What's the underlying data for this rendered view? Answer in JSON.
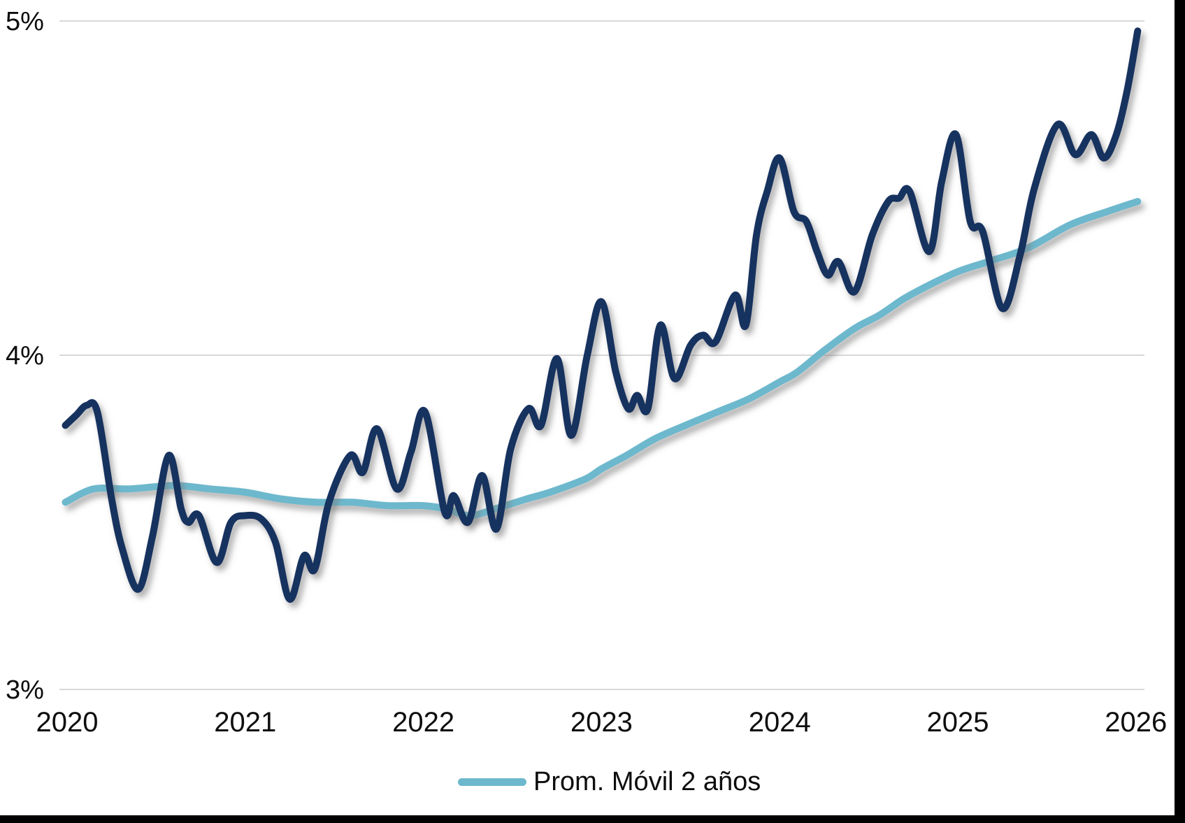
{
  "colors": {
    "background": "#ffffff",
    "grid": "#d8d8d8",
    "text": "#0d0d0d",
    "border": "#000000",
    "main_line": "#15315f",
    "moving_avg_line": "#6db8cd"
  },
  "chart_data": {
    "type": "line",
    "title": "",
    "xlabel": "",
    "ylabel": "",
    "xlim": [
      2019.97,
      2026.03
    ],
    "ylim": [
      3,
      5
    ],
    "grid": "horizontal",
    "legend_position": "bottom-center",
    "legend_label": "Prom. Móvil 2 años",
    "y_ticks": [
      {
        "label": "5%",
        "value": 5
      },
      {
        "label": "4%",
        "value": 4
      },
      {
        "label": "3%",
        "value": 3
      }
    ],
    "x_ticks": [
      {
        "label": "2020",
        "value": 2020
      },
      {
        "label": "2021",
        "value": 2021
      },
      {
        "label": "2022",
        "value": 2022
      },
      {
        "label": "2023",
        "value": 2023
      },
      {
        "label": "2024",
        "value": 2024
      },
      {
        "label": "2025",
        "value": 2025
      },
      {
        "label": "2026",
        "value": 2026
      }
    ],
    "series": [
      {
        "id": "serie-principal",
        "legend": null,
        "color": "#15315f",
        "points": [
          [
            2019.99,
            3.79
          ],
          [
            2020.05,
            3.82
          ],
          [
            2020.11,
            3.85
          ],
          [
            2020.17,
            3.83
          ],
          [
            2020.25,
            3.57
          ],
          [
            2020.31,
            3.42
          ],
          [
            2020.4,
            3.3
          ],
          [
            2020.48,
            3.46
          ],
          [
            2020.57,
            3.7
          ],
          [
            2020.64,
            3.54
          ],
          [
            2020.68,
            3.5
          ],
          [
            2020.74,
            3.52
          ],
          [
            2020.84,
            3.38
          ],
          [
            2020.92,
            3.5
          ],
          [
            2021.0,
            3.52
          ],
          [
            2021.09,
            3.51
          ],
          [
            2021.17,
            3.44
          ],
          [
            2021.25,
            3.27
          ],
          [
            2021.33,
            3.4
          ],
          [
            2021.39,
            3.36
          ],
          [
            2021.47,
            3.56
          ],
          [
            2021.59,
            3.7
          ],
          [
            2021.66,
            3.65
          ],
          [
            2021.74,
            3.78
          ],
          [
            2021.85,
            3.6
          ],
          [
            2021.93,
            3.71
          ],
          [
            2022.01,
            3.83
          ],
          [
            2022.12,
            3.53
          ],
          [
            2022.17,
            3.58
          ],
          [
            2022.25,
            3.5
          ],
          [
            2022.33,
            3.64
          ],
          [
            2022.41,
            3.48
          ],
          [
            2022.49,
            3.72
          ],
          [
            2022.59,
            3.84
          ],
          [
            2022.66,
            3.79
          ],
          [
            2022.75,
            3.99
          ],
          [
            2022.83,
            3.76
          ],
          [
            2022.92,
            4.0
          ],
          [
            2023.0,
            4.16
          ],
          [
            2023.08,
            3.95
          ],
          [
            2023.15,
            3.84
          ],
          [
            2023.2,
            3.88
          ],
          [
            2023.26,
            3.84
          ],
          [
            2023.33,
            4.09
          ],
          [
            2023.41,
            3.93
          ],
          [
            2023.5,
            4.03
          ],
          [
            2023.57,
            4.06
          ],
          [
            2023.64,
            4.04
          ],
          [
            2023.75,
            4.18
          ],
          [
            2023.81,
            4.09
          ],
          [
            2023.87,
            4.36
          ],
          [
            2023.93,
            4.49
          ],
          [
            2024.0,
            4.59
          ],
          [
            2024.08,
            4.43
          ],
          [
            2024.15,
            4.4
          ],
          [
            2024.21,
            4.31
          ],
          [
            2024.27,
            4.24
          ],
          [
            2024.33,
            4.28
          ],
          [
            2024.42,
            4.19
          ],
          [
            2024.52,
            4.36
          ],
          [
            2024.61,
            4.46
          ],
          [
            2024.67,
            4.47
          ],
          [
            2024.73,
            4.49
          ],
          [
            2024.84,
            4.31
          ],
          [
            2024.91,
            4.52
          ],
          [
            2024.99,
            4.66
          ],
          [
            2025.07,
            4.4
          ],
          [
            2025.14,
            4.37
          ],
          [
            2025.25,
            4.14
          ],
          [
            2025.35,
            4.3
          ],
          [
            2025.43,
            4.5
          ],
          [
            2025.56,
            4.69
          ],
          [
            2025.66,
            4.6
          ],
          [
            2025.75,
            4.66
          ],
          [
            2025.82,
            4.59
          ],
          [
            2025.89,
            4.66
          ],
          [
            2025.95,
            4.79
          ],
          [
            2026.01,
            4.97
          ]
        ]
      },
      {
        "id": "prom-movil-2-anos",
        "legend": "Prom. Móvil 2 años",
        "color": "#6db8cd",
        "points": [
          [
            2019.99,
            3.56
          ],
          [
            2020.15,
            3.6
          ],
          [
            2020.35,
            3.6
          ],
          [
            2020.6,
            3.61
          ],
          [
            2020.8,
            3.6
          ],
          [
            2021.0,
            3.59
          ],
          [
            2021.2,
            3.57
          ],
          [
            2021.4,
            3.56
          ],
          [
            2021.6,
            3.56
          ],
          [
            2021.8,
            3.55
          ],
          [
            2022.0,
            3.55
          ],
          [
            2022.13,
            3.54
          ],
          [
            2022.26,
            3.52
          ],
          [
            2022.4,
            3.54
          ],
          [
            2022.58,
            3.57
          ],
          [
            2022.71,
            3.59
          ],
          [
            2022.91,
            3.63
          ],
          [
            2023.0,
            3.66
          ],
          [
            2023.14,
            3.7
          ],
          [
            2023.3,
            3.75
          ],
          [
            2023.47,
            3.79
          ],
          [
            2023.65,
            3.83
          ],
          [
            2023.83,
            3.87
          ],
          [
            2024.0,
            3.92
          ],
          [
            2024.1,
            3.95
          ],
          [
            2024.24,
            4.01
          ],
          [
            2024.42,
            4.08
          ],
          [
            2024.56,
            4.12
          ],
          [
            2024.7,
            4.17
          ],
          [
            2024.84,
            4.21
          ],
          [
            2025.0,
            4.25
          ],
          [
            2025.17,
            4.28
          ],
          [
            2025.39,
            4.32
          ],
          [
            2025.63,
            4.39
          ],
          [
            2025.84,
            4.43
          ],
          [
            2026.01,
            4.46
          ]
        ]
      }
    ]
  }
}
